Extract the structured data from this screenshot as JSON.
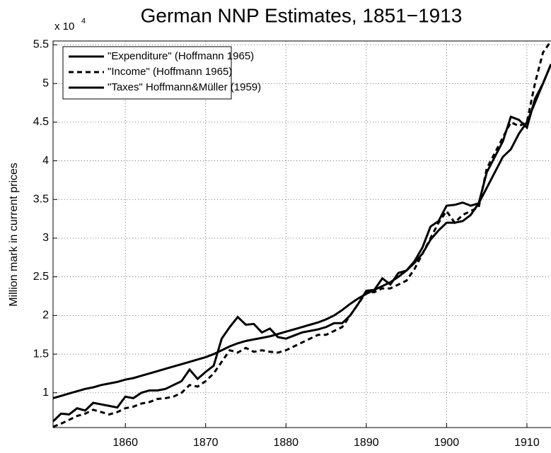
{
  "chart_data": {
    "type": "line",
    "title": "German NNP Estimates, 1851−1913",
    "y_label": "Million mark in current prices",
    "y_multiplier": "x 10",
    "y_multiplier_exponent": "4",
    "x": [
      1851,
      1852,
      1853,
      1854,
      1855,
      1856,
      1857,
      1858,
      1859,
      1860,
      1861,
      1862,
      1863,
      1864,
      1865,
      1866,
      1867,
      1868,
      1869,
      1870,
      1871,
      1872,
      1873,
      1874,
      1875,
      1876,
      1877,
      1878,
      1879,
      1880,
      1881,
      1882,
      1883,
      1884,
      1885,
      1886,
      1887,
      1888,
      1889,
      1890,
      1891,
      1892,
      1893,
      1894,
      1895,
      1896,
      1897,
      1898,
      1899,
      1900,
      1901,
      1902,
      1903,
      1904,
      1905,
      1906,
      1907,
      1908,
      1909,
      1910,
      1911,
      1912,
      1913
    ],
    "series": [
      {
        "name": "\"Expenditure\" (Hoffmann 1965)",
        "color": "#000000",
        "linestyle": "solid",
        "values": [
          0.63,
          0.73,
          0.72,
          0.8,
          0.77,
          0.87,
          0.85,
          0.83,
          0.81,
          0.95,
          0.93,
          1.0,
          1.03,
          1.03,
          1.05,
          1.1,
          1.15,
          1.3,
          1.18,
          1.27,
          1.35,
          1.7,
          1.85,
          1.98,
          1.88,
          1.89,
          1.78,
          1.83,
          1.72,
          1.7,
          1.74,
          1.78,
          1.8,
          1.82,
          1.85,
          1.9,
          1.9,
          2.0,
          2.15,
          2.32,
          2.33,
          2.48,
          2.4,
          2.55,
          2.58,
          2.7,
          2.88,
          3.15,
          3.22,
          3.42,
          3.43,
          3.46,
          3.42,
          3.45,
          3.85,
          4.05,
          4.25,
          4.57,
          4.53,
          4.43,
          4.8,
          5.0,
          5.25
        ]
      },
      {
        "name": "\"Income\" (Hoffmann 1965)",
        "color": "#000000",
        "linestyle": "dashed",
        "values": [
          0.56,
          0.6,
          0.65,
          0.7,
          0.73,
          0.78,
          0.75,
          0.72,
          0.75,
          0.8,
          0.82,
          0.86,
          0.88,
          0.92,
          0.93,
          0.95,
          1.0,
          1.1,
          1.08,
          1.15,
          1.25,
          1.4,
          1.55,
          1.52,
          1.58,
          1.53,
          1.55,
          1.53,
          1.52,
          1.55,
          1.6,
          1.65,
          1.7,
          1.75,
          1.75,
          1.8,
          1.85,
          2.0,
          2.15,
          2.3,
          2.3,
          2.35,
          2.35,
          2.4,
          2.45,
          2.6,
          2.8,
          3.0,
          3.2,
          3.35,
          3.2,
          3.3,
          3.35,
          3.4,
          3.9,
          4.1,
          4.3,
          4.5,
          4.45,
          4.5,
          5.0,
          5.4,
          5.55
        ]
      },
      {
        "name": "\"Taxes\" Hoffmann&Müller (1959)",
        "color": "#000000",
        "linestyle": "solid",
        "values": [
          0.93,
          0.96,
          0.99,
          1.02,
          1.05,
          1.07,
          1.1,
          1.12,
          1.14,
          1.17,
          1.19,
          1.22,
          1.25,
          1.28,
          1.31,
          1.34,
          1.37,
          1.4,
          1.43,
          1.46,
          1.5,
          1.55,
          1.6,
          1.64,
          1.67,
          1.69,
          1.71,
          1.73,
          1.76,
          1.79,
          1.82,
          1.85,
          1.88,
          1.91,
          1.95,
          2.0,
          2.07,
          2.15,
          2.22,
          2.28,
          2.33,
          2.38,
          2.43,
          2.5,
          2.58,
          2.68,
          2.8,
          2.98,
          3.1,
          3.2,
          3.2,
          3.22,
          3.3,
          3.45,
          3.65,
          3.85,
          4.05,
          4.15,
          4.35,
          4.5,
          4.75,
          5.0,
          5.25
        ]
      }
    ],
    "xlim": [
      1851,
      1913
    ],
    "ylim": [
      0.55,
      5.55
    ],
    "xticks": [
      1860,
      1870,
      1880,
      1890,
      1900,
      1910
    ],
    "yticks": [
      1,
      1.5,
      2,
      2.5,
      3,
      3.5,
      4,
      4.5,
      5,
      5.5
    ],
    "grid": true,
    "legend": "upper-left"
  }
}
